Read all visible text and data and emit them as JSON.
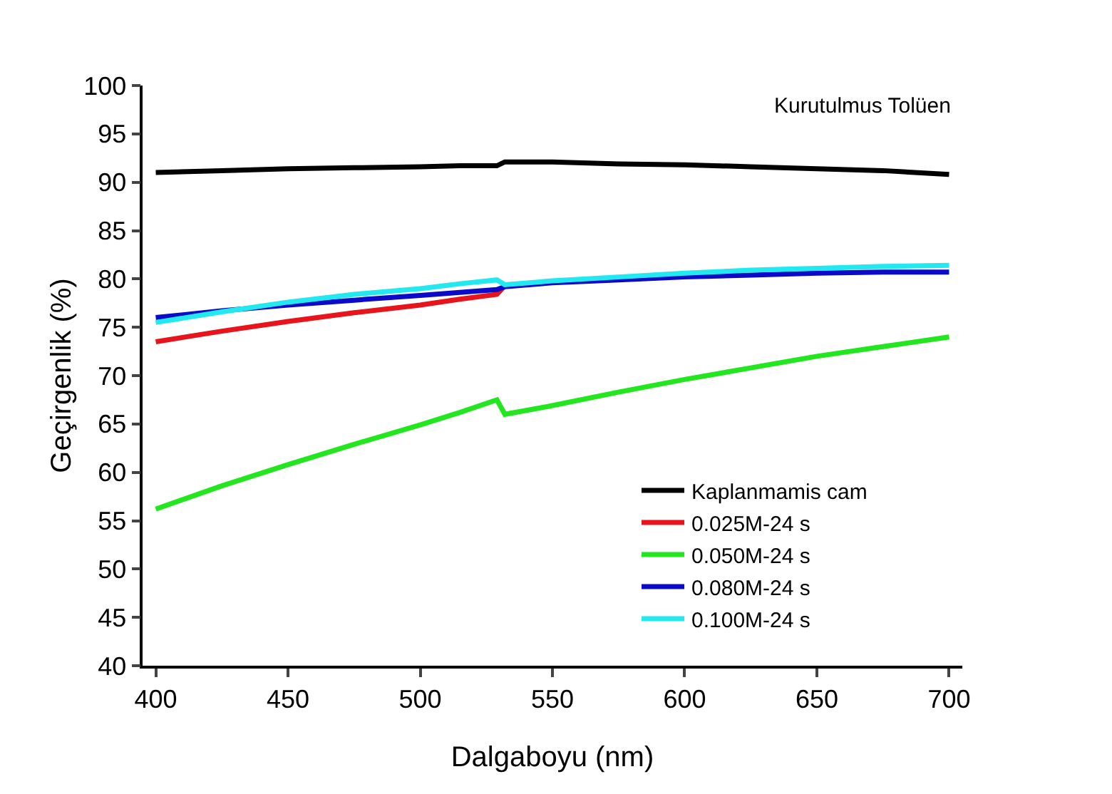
{
  "chart_data": {
    "type": "line",
    "xlabel": "Dalgaboyu (nm)",
    "ylabel": "Geçirgenlik (%)",
    "annotations": [
      "Kurutulmus Tolüen"
    ],
    "x": [
      400,
      425,
      450,
      475,
      500,
      515,
      529,
      532,
      550,
      575,
      600,
      625,
      650,
      675,
      700
    ],
    "xlim": [
      395,
      705
    ],
    "ylim": [
      40,
      100
    ],
    "xticks": [
      400,
      450,
      500,
      550,
      600,
      650,
      700
    ],
    "yticks": [
      40,
      45,
      50,
      55,
      60,
      65,
      70,
      75,
      80,
      85,
      90,
      95,
      100
    ],
    "grid": false,
    "legend": "bottom right",
    "marker": "none",
    "line_style": "solid",
    "series": [
      {
        "name": "Kaplanmamis cam",
        "color": "#000000",
        "values": [
          91,
          91.2,
          91.4,
          91.5,
          91.6,
          91.7,
          91.7,
          92.1,
          92.1,
          91.9,
          91.8,
          91.6,
          91.4,
          91.2,
          90.8
        ]
      },
      {
        "name": "0.025M-24 s",
        "color": "#e8141c",
        "values": [
          73.5,
          74.6,
          75.6,
          76.5,
          77.3,
          77.9,
          78.4,
          79.3,
          null,
          null,
          null,
          null,
          null,
          null,
          null
        ]
      },
      {
        "name": "0.050M-24 s",
        "color": "#22e61e",
        "values": [
          56.2,
          58.6,
          60.8,
          62.9,
          64.9,
          66.2,
          67.5,
          66,
          66.9,
          68.3,
          69.6,
          70.8,
          72,
          73,
          74
        ]
      },
      {
        "name": "0.080M-24 s",
        "color": "#0a0ac8",
        "values": [
          76,
          76.7,
          77.3,
          77.8,
          78.3,
          78.6,
          78.9,
          79.2,
          79.6,
          79.9,
          80.2,
          80.4,
          80.6,
          80.7,
          80.7
        ]
      },
      {
        "name": "0.100M-24 s",
        "color": "#22e8f0",
        "values": [
          75.5,
          76.6,
          77.6,
          78.4,
          79,
          79.5,
          79.9,
          79.4,
          79.8,
          80.2,
          80.6,
          80.9,
          81.1,
          81.3,
          81.4
        ]
      }
    ]
  }
}
